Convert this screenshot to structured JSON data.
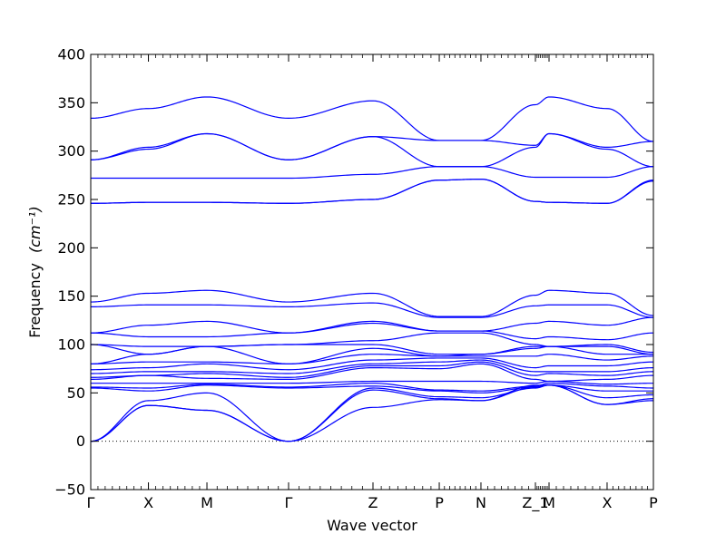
{
  "chart_data": {
    "type": "line",
    "title": "",
    "xlabel": "Wave vector",
    "ylabel": "Frequency",
    "ylabel_unit_html": "(cm⁻¹)",
    "ylim": [
      -50,
      400
    ],
    "yticks": [
      -50,
      0,
      50,
      100,
      150,
      200,
      250,
      300,
      350,
      400
    ],
    "xlim": [
      0,
      1
    ],
    "x_ticks": [
      {
        "label": "Γ",
        "x": 0.0
      },
      {
        "label": "X",
        "x": 0.1025
      },
      {
        "label": "M",
        "x": 0.2065
      },
      {
        "label": "Γ",
        "x": 0.3516
      },
      {
        "label": "Z",
        "x": 0.5016
      },
      {
        "label": "P",
        "x": 0.6194
      },
      {
        "label": "N",
        "x": 0.6935
      },
      {
        "label": "Z_1",
        "x": 0.7903
      },
      {
        "label": "M",
        "x": 0.8145
      },
      {
        "label": "X",
        "x": 0.9177
      },
      {
        "label": "P",
        "x": 1.0
      }
    ],
    "line_color": "#0000ff",
    "zero_line": {
      "y": 0,
      "color": "#000000",
      "style": "dotted"
    },
    "grid": false,
    "band_count": 24,
    "band_nodes": [
      [
        0,
        37,
        32,
        0,
        35,
        43,
        42,
        58,
        58,
        38,
        42
      ],
      [
        0,
        37,
        32,
        0,
        53,
        44,
        42,
        56,
        58,
        38,
        44
      ],
      [
        0,
        42,
        50,
        0,
        55,
        46,
        45,
        55,
        58,
        45,
        48
      ],
      [
        55,
        52,
        58,
        55,
        57,
        52,
        50,
        56,
        58,
        52,
        52
      ],
      [
        56,
        55,
        59,
        56,
        60,
        53,
        52,
        57,
        60,
        57,
        55
      ],
      [
        60,
        60,
        60,
        60,
        62,
        62,
        62,
        60,
        62,
        59,
        60
      ],
      [
        64,
        68,
        65,
        64,
        76,
        75,
        80,
        64,
        62,
        64,
        68
      ],
      [
        66,
        68,
        70,
        66,
        78,
        78,
        82,
        68,
        70,
        68,
        72
      ],
      [
        70,
        72,
        72,
        70,
        80,
        82,
        84,
        72,
        72,
        72,
        76
      ],
      [
        74,
        76,
        80,
        74,
        84,
        86,
        86,
        76,
        78,
        78,
        82
      ],
      [
        80,
        82,
        82,
        80,
        90,
        88,
        88,
        88,
        90,
        84,
        88
      ],
      [
        80,
        90,
        98,
        80,
        96,
        88,
        90,
        96,
        98,
        90,
        90
      ],
      [
        100,
        90,
        98,
        100,
        100,
        90,
        90,
        98,
        98,
        98,
        90
      ],
      [
        100,
        98,
        98,
        100,
        104,
        112,
        112,
        100,
        98,
        100,
        92
      ],
      [
        112,
        108,
        108,
        112,
        122,
        114,
        114,
        106,
        108,
        105,
        112
      ],
      [
        112,
        120,
        124,
        112,
        124,
        114,
        114,
        122,
        124,
        120,
        128
      ],
      [
        139,
        141,
        141,
        139,
        143,
        128,
        128,
        140,
        141,
        141,
        128
      ],
      [
        144,
        153,
        156,
        144,
        153,
        129,
        129,
        151,
        156,
        153,
        130
      ],
      [
        246,
        247,
        247,
        246,
        250,
        270,
        271,
        248,
        247,
        246,
        269
      ],
      [
        246,
        247,
        247,
        246,
        250,
        270,
        271,
        248,
        247,
        246,
        270
      ],
      [
        272,
        272,
        272,
        272,
        276,
        284,
        284,
        273,
        273,
        273,
        284
      ],
      [
        291,
        302,
        318,
        291,
        315,
        284,
        284,
        304,
        318,
        302,
        284
      ],
      [
        291,
        304,
        318,
        291,
        315,
        311,
        311,
        306,
        318,
        304,
        310
      ],
      [
        334,
        344,
        356,
        334,
        352,
        311,
        311,
        348,
        356,
        344,
        310
      ]
    ]
  }
}
